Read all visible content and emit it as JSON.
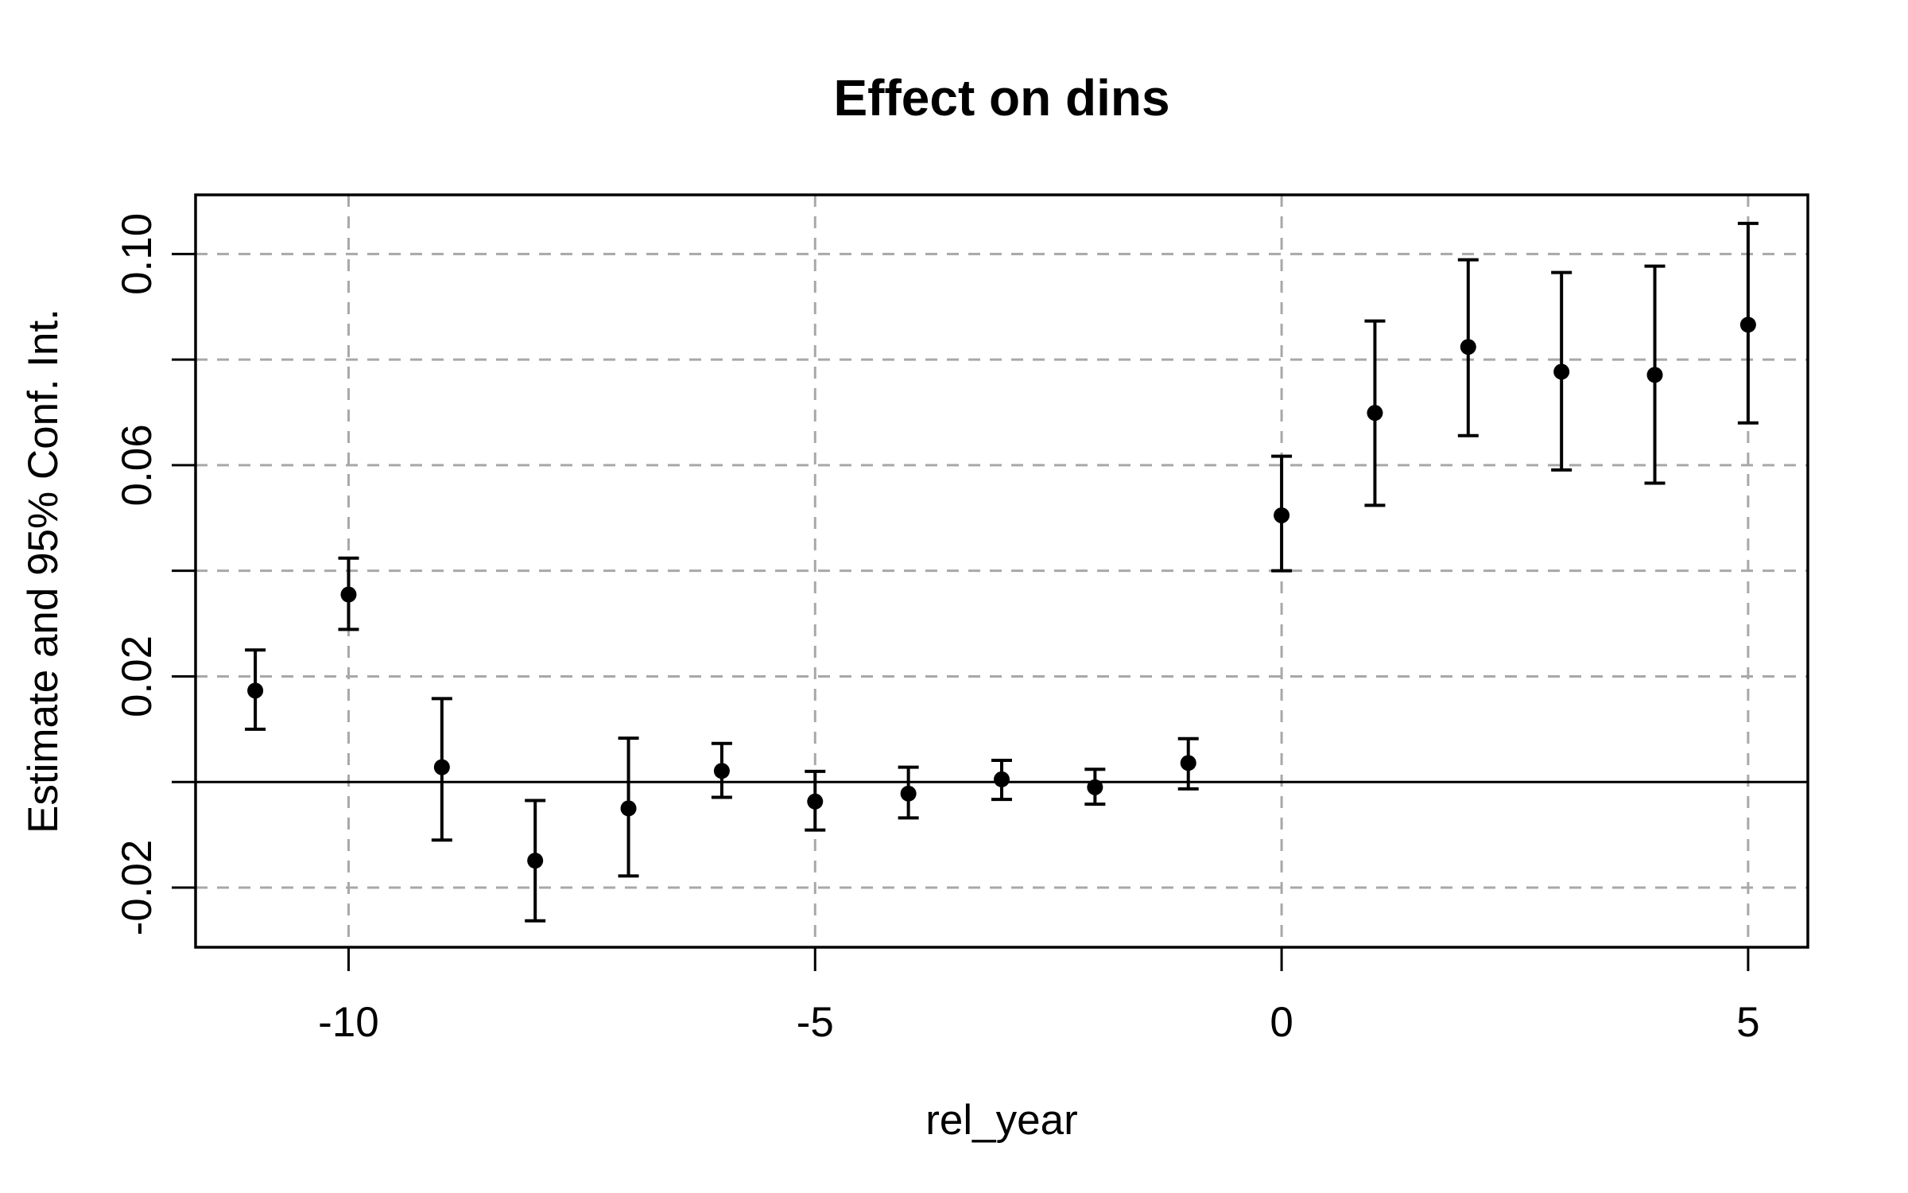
{
  "chart_data": {
    "type": "scatter",
    "subtype": "errorbar-event-study",
    "title": "Effect on dins",
    "xlabel": "rel_year",
    "ylabel": "Estimate and 95% Conf. Int.",
    "x": [
      -11,
      -10,
      -9,
      -8,
      -7,
      -6,
      -5,
      -4,
      -3,
      -2,
      -1,
      0,
      1,
      2,
      3,
      4,
      5
    ],
    "series": [
      {
        "name": "estimate",
        "values": [
          0.0173,
          0.0355,
          0.0028,
          -0.0149,
          -0.005,
          0.0021,
          -0.0037,
          -0.0022,
          0.0005,
          -0.001,
          0.0036,
          0.0505,
          0.0699,
          0.0824,
          0.0777,
          0.0771,
          0.0866
        ]
      },
      {
        "name": "ci_lower_95",
        "values": [
          0.01,
          0.0289,
          -0.011,
          -0.0263,
          -0.0178,
          -0.0029,
          -0.0091,
          -0.0068,
          -0.0033,
          -0.0042,
          -0.0013,
          0.04,
          0.0524,
          0.0656,
          0.0591,
          0.0566,
          0.068
        ]
      },
      {
        "name": "ci_upper_95",
        "values": [
          0.025,
          0.0424,
          0.0158,
          -0.0035,
          0.0083,
          0.0073,
          0.002,
          0.0028,
          0.0041,
          0.0024,
          0.0082,
          0.0617,
          0.0873,
          0.0989,
          0.0965,
          0.0977,
          0.1058
        ]
      }
    ],
    "xlim": [
      -11.64,
      5.64
    ],
    "ylim": [
      -0.0313,
      0.1112
    ],
    "xticks": [
      -10,
      -5,
      0,
      5
    ],
    "xtick_labels": [
      "-10",
      "-5",
      "0",
      "5"
    ],
    "yticks": [
      -0.02,
      0,
      0.02,
      0.04,
      0.06,
      0.08,
      0.1
    ],
    "ytick_labels": [
      "-0.02",
      "",
      "0.02",
      "",
      "0.06",
      "",
      "0.10"
    ],
    "grid": true,
    "grid_style": "dashed",
    "legend_position": "none",
    "zero_line_y": 0,
    "colors": {
      "points": "#000000",
      "axis": "#000000",
      "grid": "#a8a8a8",
      "background": "#ffffff"
    }
  }
}
